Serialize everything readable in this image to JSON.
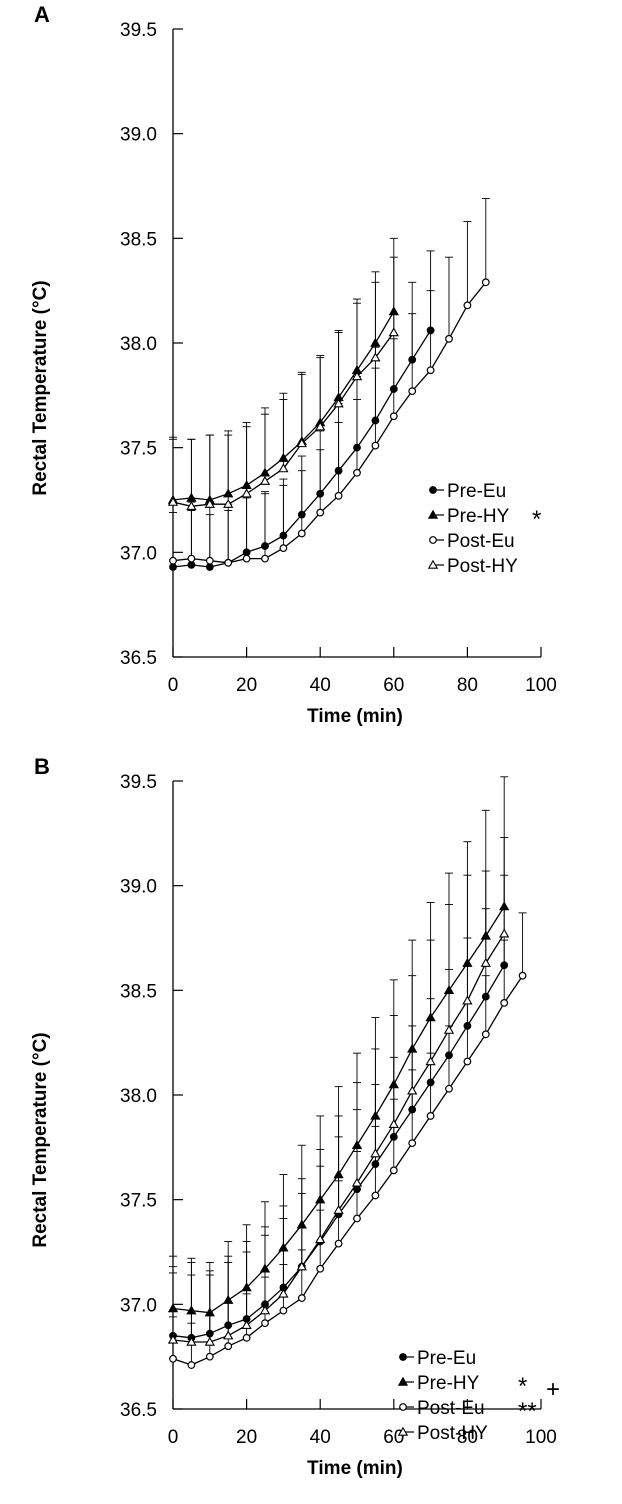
{
  "chart_data": [
    {
      "panel": "A",
      "type": "line",
      "xlabel": "Time (min)",
      "ylabel": "Rectal Temperature (°C)",
      "xlim": [
        0,
        100
      ],
      "ylim": [
        36.5,
        39.5
      ],
      "xticks": [
        "0",
        "20",
        "40",
        "60",
        "80",
        "100"
      ],
      "yticks": [
        "36.5",
        "37.0",
        "37.5",
        "38.0",
        "38.5",
        "39.0",
        "39.5"
      ],
      "grid": false,
      "legend_position": "lower-right",
      "series": [
        {
          "name": "Pre-Eu",
          "marker": "filled-circle",
          "marker_fill": "#000000",
          "sig": "",
          "x": [
            0,
            5,
            10,
            15,
            20,
            25,
            30,
            35,
            40,
            45,
            50,
            55,
            60,
            65,
            70
          ],
          "y": [
            36.93,
            36.94,
            36.93,
            36.95,
            37.0,
            37.03,
            37.08,
            37.18,
            37.28,
            37.39,
            37.5,
            37.63,
            37.78,
            37.92,
            38.06
          ],
          "err": [
            0.26,
            0.26,
            0.25,
            0.25,
            0.26,
            0.26,
            0.27,
            0.28,
            0.3,
            0.32,
            0.34,
            0.35,
            0.36,
            0.37,
            0.38
          ]
        },
        {
          "name": "Pre-HY",
          "marker": "filled-triangle",
          "marker_fill": "#000000",
          "sig": "*",
          "x": [
            0,
            5,
            10,
            15,
            20,
            25,
            30,
            35,
            40,
            45,
            50,
            55,
            60
          ],
          "y": [
            37.25,
            37.26,
            37.25,
            37.28,
            37.32,
            37.38,
            37.45,
            37.53,
            37.62,
            37.74,
            37.87,
            38.0,
            38.15
          ],
          "err": [
            0.3,
            0.28,
            0.31,
            0.3,
            0.3,
            0.31,
            0.31,
            0.32,
            0.32,
            0.32,
            0.34,
            0.34,
            0.35
          ]
        },
        {
          "name": "Post-Eu",
          "marker": "open-circle",
          "marker_fill": "#ffffff",
          "sig": "",
          "x": [
            0,
            5,
            10,
            15,
            20,
            25,
            30,
            35,
            40,
            45,
            50,
            55,
            60,
            65,
            70,
            75,
            80,
            85
          ],
          "y": [
            36.96,
            36.97,
            36.96,
            36.95,
            36.97,
            36.97,
            37.02,
            37.09,
            37.19,
            37.27,
            37.38,
            37.51,
            37.65,
            37.77,
            37.87,
            38.02,
            38.18,
            38.29
          ],
          "err": [
            0.28,
            0.27,
            0.28,
            0.28,
            0.3,
            0.31,
            0.3,
            0.3,
            0.3,
            0.35,
            0.35,
            0.37,
            0.37,
            0.37,
            0.38,
            0.39,
            0.4,
            0.4
          ]
        },
        {
          "name": "Post-HY",
          "marker": "open-triangle",
          "marker_fill": "#ffffff",
          "sig": "",
          "x": [
            0,
            5,
            10,
            15,
            20,
            25,
            30,
            35,
            40,
            45,
            50,
            55,
            60
          ],
          "y": [
            37.24,
            37.22,
            37.23,
            37.23,
            37.28,
            37.34,
            37.4,
            37.52,
            37.6,
            37.71,
            37.84,
            37.93,
            38.05
          ],
          "err": [
            0.3,
            0.32,
            0.33,
            0.33,
            0.32,
            0.32,
            0.33,
            0.34,
            0.33,
            0.34,
            0.35,
            0.36,
            0.36
          ]
        }
      ]
    },
    {
      "panel": "B",
      "type": "line",
      "xlabel": "Time (min)",
      "ylabel": "Rectal Temperature (°C)",
      "xlim": [
        0,
        100
      ],
      "ylim": [
        36.5,
        39.5
      ],
      "xticks": [
        "0",
        "20",
        "40",
        "60",
        "80",
        "100"
      ],
      "yticks": [
        "36.5",
        "37.0",
        "37.5",
        "38.0",
        "38.5",
        "39.0",
        "39.5"
      ],
      "grid": false,
      "legend_position": "lower-right",
      "extra_annotation": "+",
      "series": [
        {
          "name": "Pre-Eu",
          "marker": "filled-circle",
          "marker_fill": "#000000",
          "sig": "",
          "x": [
            0,
            5,
            10,
            15,
            20,
            25,
            30,
            35,
            40,
            45,
            50,
            55,
            60,
            65,
            70,
            75,
            80,
            85,
            90
          ],
          "y": [
            36.85,
            36.84,
            36.86,
            36.9,
            36.93,
            37.0,
            37.08,
            37.18,
            37.3,
            37.43,
            37.55,
            37.67,
            37.8,
            37.93,
            38.06,
            38.19,
            38.33,
            38.47,
            38.62
          ],
          "err": [
            0.3,
            0.3,
            0.3,
            0.3,
            0.32,
            0.33,
            0.33,
            0.35,
            0.36,
            0.37,
            0.38,
            0.38,
            0.38,
            0.4,
            0.4,
            0.41,
            0.42,
            0.42,
            0.43
          ]
        },
        {
          "name": "Pre-HY",
          "marker": "filled-triangle",
          "marker_fill": "#000000",
          "sig": "*",
          "x": [
            0,
            5,
            10,
            15,
            20,
            25,
            30,
            35,
            40,
            45,
            50,
            55,
            60,
            65,
            70,
            75,
            80,
            85,
            90
          ],
          "y": [
            36.98,
            36.97,
            36.96,
            37.02,
            37.08,
            37.17,
            37.27,
            37.38,
            37.5,
            37.62,
            37.76,
            37.9,
            38.05,
            38.22,
            38.37,
            38.5,
            38.63,
            38.76,
            38.9
          ],
          "err": [
            0.25,
            0.25,
            0.24,
            0.28,
            0.3,
            0.32,
            0.35,
            0.38,
            0.4,
            0.42,
            0.44,
            0.47,
            0.5,
            0.52,
            0.55,
            0.56,
            0.58,
            0.6,
            0.62
          ]
        },
        {
          "name": "Post-Eu",
          "marker": "open-circle",
          "marker_fill": "#ffffff",
          "sig": "**",
          "x": [
            0,
            5,
            10,
            15,
            20,
            25,
            30,
            35,
            40,
            45,
            50,
            55,
            60,
            65,
            70,
            75,
            80,
            85,
            90,
            95
          ],
          "y": [
            36.74,
            36.71,
            36.75,
            36.8,
            36.84,
            36.91,
            36.97,
            37.03,
            37.17,
            37.29,
            37.41,
            37.52,
            37.64,
            37.77,
            37.9,
            38.03,
            38.16,
            38.29,
            38.44,
            38.57
          ],
          "err": [
            0.2,
            0.2,
            0.2,
            0.21,
            0.21,
            0.22,
            0.22,
            0.23,
            0.28,
            0.3,
            0.32,
            0.33,
            0.34,
            0.35,
            0.3,
            0.3,
            0.28,
            0.28,
            0.3,
            0.3
          ]
        },
        {
          "name": "Post-HY",
          "marker": "open-triangle",
          "marker_fill": "#ffffff",
          "sig": "",
          "x": [
            0,
            5,
            10,
            15,
            20,
            25,
            30,
            35,
            40,
            45,
            50,
            55,
            60,
            65,
            70,
            75,
            80,
            85,
            90
          ],
          "y": [
            36.83,
            36.82,
            36.82,
            36.85,
            36.9,
            36.97,
            37.05,
            37.18,
            37.31,
            37.45,
            37.58,
            37.72,
            37.86,
            38.02,
            38.16,
            38.31,
            38.45,
            38.63,
            38.77
          ],
          "err": [
            0.35,
            0.38,
            0.32,
            0.38,
            0.4,
            0.4,
            0.42,
            0.42,
            0.43,
            0.45,
            0.48,
            0.5,
            0.52,
            0.55,
            0.58,
            0.6,
            0.6,
            0.44,
            0.46
          ]
        }
      ]
    }
  ]
}
